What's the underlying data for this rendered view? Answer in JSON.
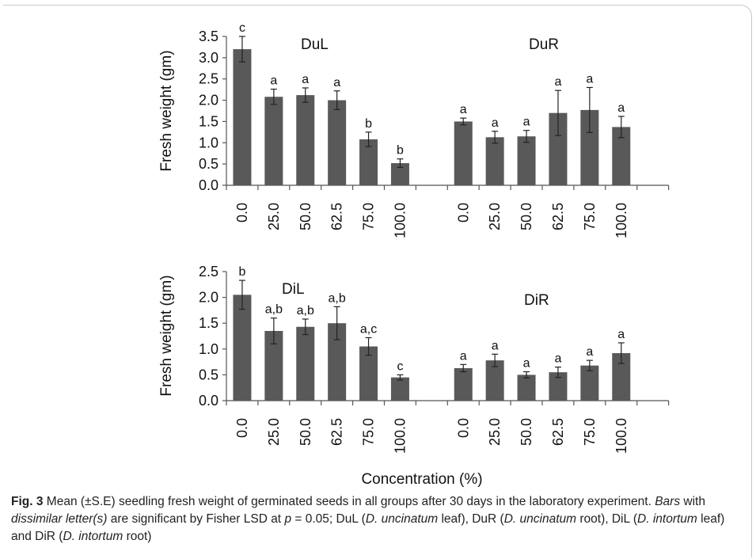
{
  "chart_data": [
    {
      "type": "bar",
      "ylabel": "Fresh weight  (gm)",
      "ylim": [
        0,
        3.5
      ],
      "yticks": [
        "0.0",
        "0.5",
        "1.0",
        "1.5",
        "2.0",
        "2.5",
        "3.0",
        "3.5"
      ],
      "groups": [
        {
          "name": "DuL",
          "categories": [
            "0.0",
            "25.0",
            "50.0",
            "62.5",
            "75.0",
            "100.0"
          ],
          "values": [
            3.2,
            2.08,
            2.12,
            2.0,
            1.08,
            0.52
          ],
          "errors": [
            0.3,
            0.18,
            0.17,
            0.22,
            0.17,
            0.1
          ],
          "letters": [
            "c",
            "a",
            "a",
            "a",
            "b",
            "b"
          ]
        },
        {
          "name": "DuR",
          "categories": [
            "0.0",
            "25.0",
            "50.0",
            "62.5",
            "75.0",
            "100.0"
          ],
          "values": [
            1.5,
            1.13,
            1.15,
            1.7,
            1.77,
            1.37
          ],
          "errors": [
            0.08,
            0.14,
            0.14,
            0.53,
            0.53,
            0.25
          ],
          "letters": [
            "a",
            "a",
            "a",
            "a",
            "a",
            "a"
          ]
        }
      ]
    },
    {
      "type": "bar",
      "ylabel": "Fresh weight  (gm)",
      "ylim": [
        0,
        2.5
      ],
      "yticks": [
        "0.0",
        "0.5",
        "1.0",
        "1.5",
        "2.0",
        "2.5"
      ],
      "groups": [
        {
          "name": "DiL",
          "categories": [
            "0.0",
            "25.0",
            "50.0",
            "62.5",
            "75.0",
            "100.0"
          ],
          "values": [
            2.05,
            1.35,
            1.43,
            1.5,
            1.05,
            0.45
          ],
          "errors": [
            0.28,
            0.25,
            0.15,
            0.32,
            0.17,
            0.05
          ],
          "letters": [
            "b",
            "a,b",
            "a,b",
            "a,b",
            "a,c",
            "c"
          ]
        },
        {
          "name": "DiR",
          "categories": [
            "0.0",
            "25.0",
            "50.0",
            "62.5",
            "75.0",
            "100.0"
          ],
          "values": [
            0.63,
            0.78,
            0.5,
            0.55,
            0.68,
            0.92
          ],
          "errors": [
            0.07,
            0.12,
            0.06,
            0.1,
            0.1,
            0.2
          ],
          "letters": [
            "a",
            "a",
            "a",
            "a",
            "a",
            "a"
          ]
        }
      ]
    }
  ],
  "xlabel": "Concentration (%)",
  "caption": {
    "label": "Fig. 3",
    "t1": "  Mean (±S.E) seedling fresh weight of germinated seeds in all groups after 30 days in the laboratory experiment. ",
    "t2": "Bars",
    "t3": " with ",
    "t4": "dissimilar letter(s)",
    "t5": " are significant by Fisher LSD at ",
    "t6": "p",
    "t7": " = 0.05; DuL (",
    "t8": "D. uncinatum",
    "t9": " leaf), DuR (",
    "t10": "D. uncinatum",
    "t11": " root), DiL (",
    "t12": "D. intortum",
    "t13": " leaf) and DiR (",
    "t14": "D. intortum",
    "t15": " root)"
  },
  "colors": {
    "bar": "#595959",
    "axis": "#555555",
    "text": "#111111"
  }
}
